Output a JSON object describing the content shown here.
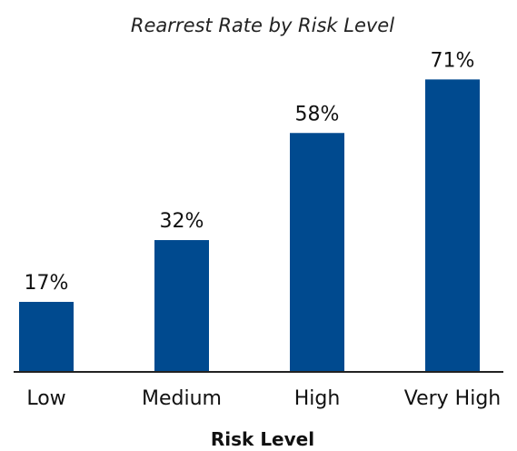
{
  "chart_data": {
    "type": "bar",
    "title": "Rearrest Rate by Risk Level",
    "xlabel": "Risk Level",
    "ylabel": "",
    "categories": [
      "Low",
      "Medium",
      "High",
      "Very High"
    ],
    "values": [
      17,
      32,
      58,
      71
    ],
    "data_labels": [
      "17%",
      "32%",
      "58%",
      "71%"
    ],
    "ylim": [
      0,
      100
    ],
    "grid": false,
    "legend": "none",
    "bar_color": "#004a8f",
    "axis_color": "#222222"
  }
}
